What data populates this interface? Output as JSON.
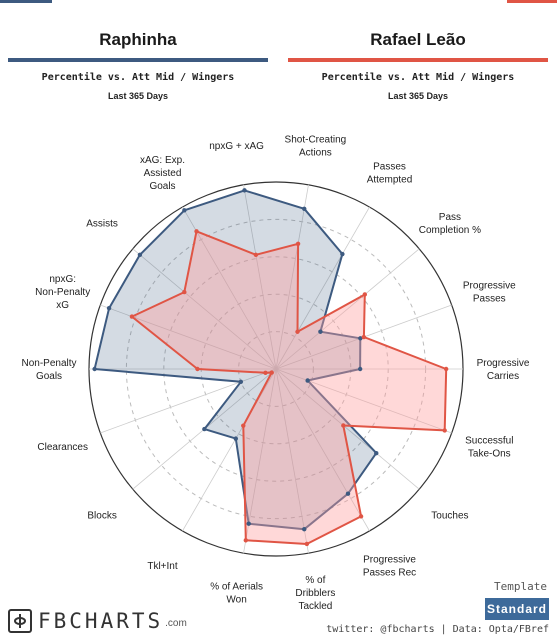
{
  "players": [
    {
      "name": "Raphinha",
      "color": "#3d5a80",
      "fill": "#3d5a80"
    },
    {
      "name": "Rafael Leão",
      "color": "#e05545",
      "fill": "#ff9e9e"
    }
  ],
  "subtitle": "Percentile vs. Att Mid / Wingers",
  "period": "Last 365 Days",
  "chart_data": {
    "type": "radar",
    "scale": [
      0,
      100
    ],
    "grid": true,
    "axes": [
      "Shot-Creating Actions",
      "Passes Attempted",
      "Pass Completion %",
      "Progressive Passes",
      "Progressive Carries",
      "Successful Take-Ons",
      "Touches",
      "Progressive Passes Rec",
      "% of Dribblers Tackled",
      "% of Aerials Won",
      "Tkl+Int",
      "Blocks",
      "Clearances",
      "Non-Penalty Goals",
      "npxG: Non-Penalty xG",
      "Assists",
      "xAG: Exp. Assisted Goals",
      "npxG + xAG"
    ],
    "series": [
      {
        "name": "Raphinha",
        "values": [
          87,
          71,
          31,
          48,
          45,
          18,
          70,
          77,
          87,
          84,
          43,
          50,
          20,
          97,
          95,
          95,
          98,
          97
        ]
      },
      {
        "name": "Rafael Leão",
        "values": [
          68,
          23,
          62,
          50,
          91,
          96,
          47,
          91,
          95,
          93,
          35,
          3,
          6,
          42,
          82,
          64,
          85,
          62
        ]
      }
    ]
  },
  "brand": {
    "logo_text": "FBCHARTS",
    "logo_suffix": ".com"
  },
  "template": {
    "label": "Template",
    "button": "Standard"
  },
  "credits": "twitter: @fbcharts | Data: Opta/FBref"
}
